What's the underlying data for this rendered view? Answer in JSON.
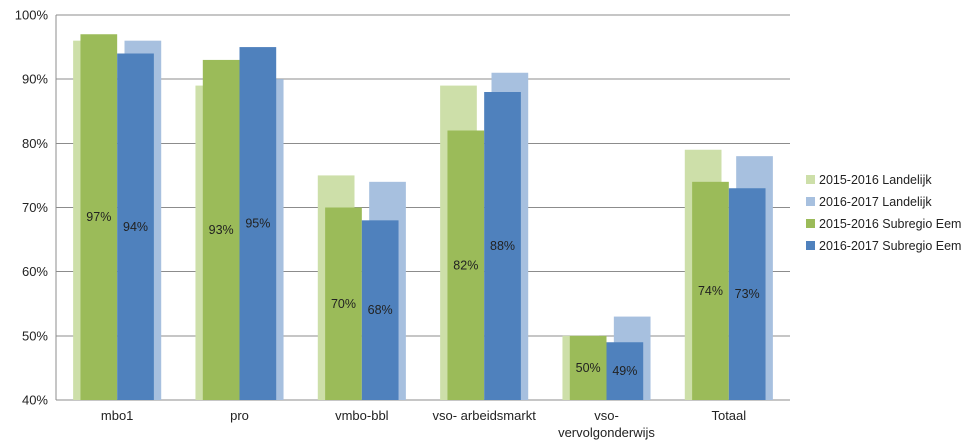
{
  "chart_data": {
    "type": "bar",
    "categories": [
      [
        "mbo1"
      ],
      [
        "pro"
      ],
      [
        "vmbo-bbl"
      ],
      [
        "vso- arbeidsmarkt"
      ],
      [
        "vso-",
        "vervolgonderwijs"
      ],
      [
        "Totaal"
      ]
    ],
    "series": [
      {
        "name": "2015-2016 Landelijk",
        "color": "#cddfa9",
        "values": [
          96,
          89,
          75,
          89,
          50,
          79
        ]
      },
      {
        "name": "2016-2017 Landelijk",
        "color": "#a7c0df",
        "values": [
          96,
          90,
          74,
          91,
          53,
          78
        ]
      },
      {
        "name": "2015-2016 Subregio Eem",
        "color": "#9bbb59",
        "values": [
          97,
          93,
          70,
          82,
          50,
          74
        ],
        "data_labels": [
          "97%",
          "93%",
          "70%",
          "82%",
          "50%",
          "74%"
        ]
      },
      {
        "name": "2016-2017 Subregio Eem",
        "color": "#4f81bd",
        "values": [
          94,
          95,
          68,
          88,
          49,
          73
        ],
        "data_labels": [
          "94%",
          "95%",
          "68%",
          "88%",
          "49%",
          "73%"
        ]
      }
    ],
    "y_ticks": [
      "40%",
      "50%",
      "60%",
      "70%",
      "80%",
      "90%",
      "100%"
    ],
    "ylim": [
      40,
      100
    ],
    "gridlines": true,
    "legend_position": "right",
    "title": "",
    "xlabel": "",
    "ylabel": ""
  }
}
